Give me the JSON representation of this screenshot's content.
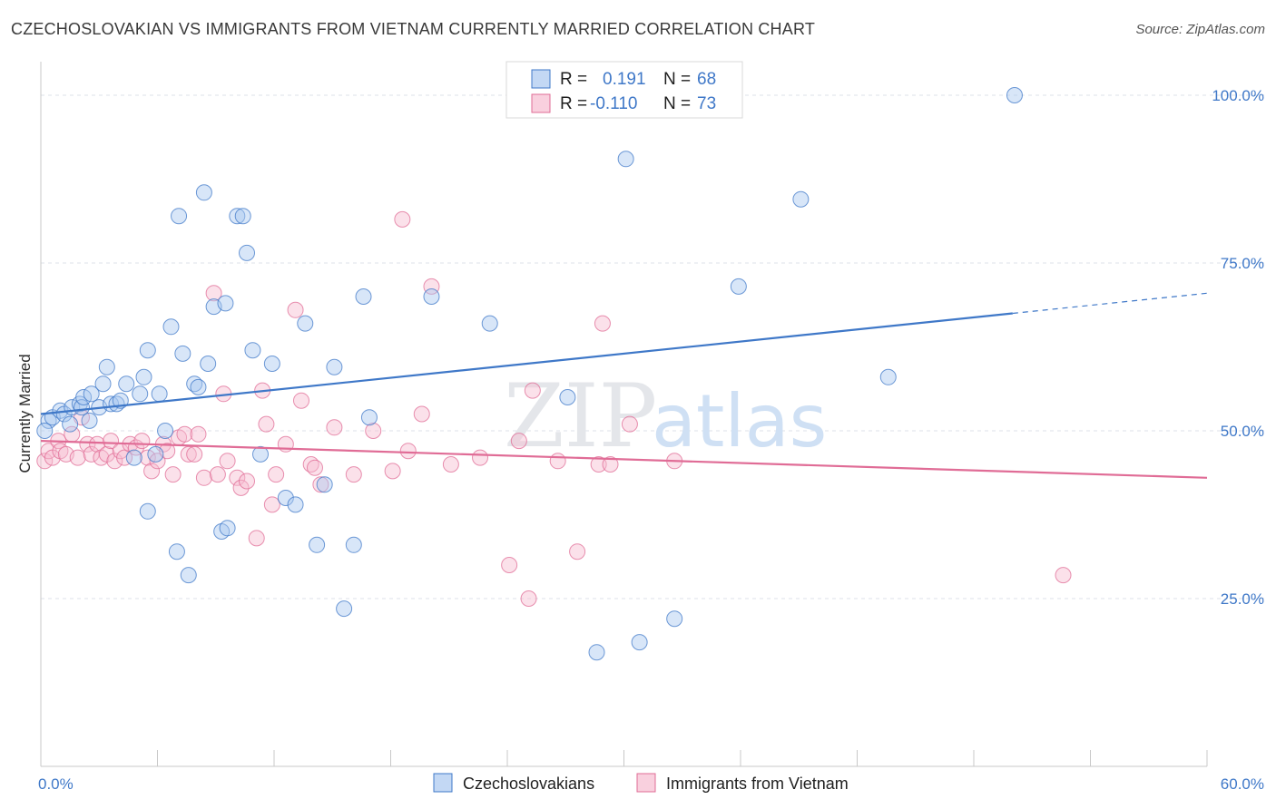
{
  "title": "CZECHOSLOVAKIAN VS IMMIGRANTS FROM VIETNAM CURRENTLY MARRIED CORRELATION CHART",
  "source": "Source: ZipAtlas.com",
  "watermark": {
    "zip": "ZIP",
    "atlas": "atlas"
  },
  "colors": {
    "blue": "#3f78c8",
    "blue_fill": "#a9c8f0",
    "pink": "#e06c96",
    "pink_fill": "#f6bcd0",
    "grid": "#dde2ea"
  },
  "chart_data": {
    "type": "scatter",
    "xlabel": "",
    "ylabel": "Currently Married",
    "xlim": [
      0,
      60
    ],
    "ylim": [
      0,
      105
    ],
    "x_tick_labels": {
      "min": "0.0%",
      "max": "60.0%"
    },
    "y_ticks": [
      {
        "value": 25,
        "label": "25.0%"
      },
      {
        "value": 50,
        "label": "50.0%"
      },
      {
        "value": 75,
        "label": "75.0%"
      },
      {
        "value": 100,
        "label": "100.0%"
      }
    ],
    "grid": true,
    "legend_top": [
      {
        "r_label": "R =",
        "r_value": "0.191",
        "n_label": "N =",
        "n_value": "68"
      },
      {
        "r_label": "R =",
        "r_value": "-0.110",
        "n_label": "N =",
        "n_value": "73"
      }
    ],
    "series": [
      {
        "name": "Czechoslovakians",
        "color": "#3f78c8",
        "trend": {
          "x0": 0,
          "y0": 52.5,
          "x1": 50,
          "y1": 67.5,
          "dash_to_x": 60,
          "dash_to_y": 70.5
        },
        "points": [
          [
            0.4,
            51.5
          ],
          [
            0.6,
            52.0
          ],
          [
            1.0,
            53.0
          ],
          [
            1.2,
            52.5
          ],
          [
            1.5,
            51.0
          ],
          [
            1.6,
            53.5
          ],
          [
            2.0,
            54.0
          ],
          [
            2.1,
            53.5
          ],
          [
            2.2,
            55.0
          ],
          [
            2.5,
            51.5
          ],
          [
            2.6,
            55.5
          ],
          [
            3.0,
            53.5
          ],
          [
            3.2,
            57.0
          ],
          [
            3.4,
            59.5
          ],
          [
            3.6,
            54.0
          ],
          [
            3.9,
            54.0
          ],
          [
            4.1,
            54.5
          ],
          [
            4.4,
            57.0
          ],
          [
            4.8,
            46.0
          ],
          [
            5.1,
            55.5
          ],
          [
            5.3,
            58.0
          ],
          [
            5.5,
            62.0
          ],
          [
            5.9,
            46.5
          ],
          [
            6.1,
            55.5
          ],
          [
            6.4,
            50.0
          ],
          [
            6.7,
            65.5
          ],
          [
            7.1,
            82.0
          ],
          [
            7.3,
            61.5
          ],
          [
            7.6,
            28.5
          ],
          [
            7.9,
            57.0
          ],
          [
            8.1,
            56.5
          ],
          [
            8.4,
            85.5
          ],
          [
            8.6,
            60.0
          ],
          [
            8.9,
            68.5
          ],
          [
            9.3,
            35.0
          ],
          [
            9.5,
            69.0
          ],
          [
            10.1,
            82.0
          ],
          [
            10.4,
            82.0
          ],
          [
            10.6,
            76.5
          ],
          [
            10.9,
            62.0
          ],
          [
            11.3,
            46.5
          ],
          [
            11.9,
            60.0
          ],
          [
            12.6,
            40.0
          ],
          [
            13.1,
            39.0
          ],
          [
            13.6,
            66.0
          ],
          [
            14.2,
            33.0
          ],
          [
            14.6,
            42.0
          ],
          [
            15.1,
            59.5
          ],
          [
            15.6,
            23.5
          ],
          [
            16.1,
            33.0
          ],
          [
            16.6,
            70.0
          ],
          [
            16.9,
            52.0
          ],
          [
            20.1,
            70.0
          ],
          [
            23.1,
            66.0
          ],
          [
            25.0,
            100.0
          ],
          [
            27.1,
            55.0
          ],
          [
            28.6,
            17.0
          ],
          [
            30.1,
            90.5
          ],
          [
            30.8,
            18.5
          ],
          [
            32.6,
            22.0
          ],
          [
            35.9,
            71.5
          ],
          [
            39.1,
            84.5
          ],
          [
            43.6,
            58.0
          ],
          [
            50.1,
            100.0
          ],
          [
            7.0,
            32.0
          ],
          [
            9.6,
            35.5
          ],
          [
            0.2,
            50.0
          ],
          [
            5.5,
            38.0
          ]
        ]
      },
      {
        "name": "Immigrants from Vietnam",
        "color": "#e06c96",
        "trend": {
          "x0": 0,
          "y0": 48.5,
          "x1": 60,
          "y1": 43.0
        },
        "points": [
          [
            0.2,
            45.5
          ],
          [
            0.4,
            47.0
          ],
          [
            0.6,
            46.0
          ],
          [
            0.9,
            48.5
          ],
          [
            1.0,
            47.0
          ],
          [
            1.3,
            46.5
          ],
          [
            1.6,
            49.5
          ],
          [
            1.9,
            46.0
          ],
          [
            2.1,
            52.0
          ],
          [
            2.4,
            48.0
          ],
          [
            2.6,
            46.5
          ],
          [
            2.9,
            48.0
          ],
          [
            3.1,
            46.0
          ],
          [
            3.4,
            46.5
          ],
          [
            3.6,
            48.5
          ],
          [
            3.8,
            45.5
          ],
          [
            4.1,
            47.0
          ],
          [
            4.3,
            46.0
          ],
          [
            4.6,
            48.0
          ],
          [
            4.9,
            47.5
          ],
          [
            5.2,
            48.5
          ],
          [
            5.5,
            46.0
          ],
          [
            5.7,
            44.0
          ],
          [
            6.0,
            45.5
          ],
          [
            6.3,
            48.0
          ],
          [
            6.5,
            47.0
          ],
          [
            6.8,
            43.5
          ],
          [
            7.1,
            49.0
          ],
          [
            7.4,
            49.5
          ],
          [
            7.6,
            46.5
          ],
          [
            7.9,
            46.5
          ],
          [
            8.1,
            49.5
          ],
          [
            8.4,
            43.0
          ],
          [
            8.9,
            70.5
          ],
          [
            9.1,
            43.5
          ],
          [
            9.4,
            55.5
          ],
          [
            9.6,
            45.5
          ],
          [
            10.1,
            43.0
          ],
          [
            10.3,
            41.5
          ],
          [
            10.6,
            42.5
          ],
          [
            11.1,
            34.0
          ],
          [
            11.4,
            56.0
          ],
          [
            11.6,
            51.0
          ],
          [
            11.9,
            39.0
          ],
          [
            12.1,
            43.5
          ],
          [
            12.6,
            48.0
          ],
          [
            13.1,
            68.0
          ],
          [
            13.4,
            54.5
          ],
          [
            13.9,
            45.0
          ],
          [
            14.1,
            44.5
          ],
          [
            14.4,
            42.0
          ],
          [
            15.1,
            50.5
          ],
          [
            16.1,
            43.5
          ],
          [
            17.1,
            50.0
          ],
          [
            18.1,
            44.0
          ],
          [
            18.6,
            81.5
          ],
          [
            18.9,
            47.0
          ],
          [
            19.6,
            52.5
          ],
          [
            20.1,
            71.5
          ],
          [
            21.1,
            45.0
          ],
          [
            22.6,
            46.0
          ],
          [
            24.1,
            30.0
          ],
          [
            24.6,
            48.5
          ],
          [
            25.1,
            25.0
          ],
          [
            25.3,
            56.0
          ],
          [
            26.6,
            45.5
          ],
          [
            27.6,
            32.0
          ],
          [
            28.9,
            66.0
          ],
          [
            28.7,
            45.0
          ],
          [
            29.3,
            45.0
          ],
          [
            30.3,
            51.0
          ],
          [
            32.6,
            45.5
          ],
          [
            52.6,
            28.5
          ]
        ]
      }
    ],
    "bottom_legend": [
      "Czechoslovakians",
      "Immigrants from Vietnam"
    ]
  }
}
